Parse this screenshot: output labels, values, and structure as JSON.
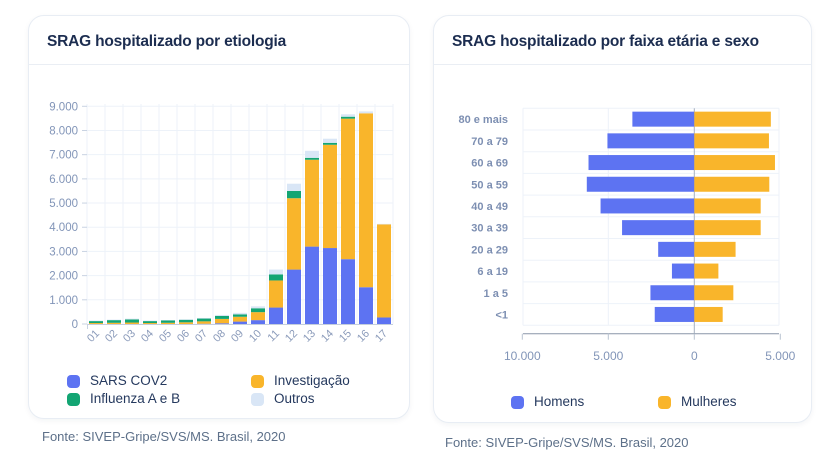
{
  "cards": [
    {
      "title": "SRAG hospitalizado por etiologia",
      "source": "Fonte: SIVEP-Gripe/SVS/MS. Brasil, 2020"
    },
    {
      "title": "SRAG hospitalizado por faixa etária e sexo",
      "source": "Fonte: SIVEP-Gripe/SVS/MS. Brasil, 2020"
    }
  ],
  "chart_data": [
    {
      "type": "bar",
      "stacked": true,
      "title": "SRAG hospitalizado por etiologia",
      "categories": [
        "01",
        "02",
        "03",
        "04",
        "05",
        "06",
        "07",
        "08",
        "09",
        "10",
        "11",
        "12",
        "13",
        "14",
        "15",
        "16",
        "17"
      ],
      "series": [
        {
          "name": "SARS COV2",
          "color": "#5D73F2",
          "values": [
            0,
            0,
            0,
            0,
            0,
            0,
            10,
            30,
            100,
            160,
            680,
            2250,
            3200,
            3140,
            2680,
            1520,
            270
          ]
        },
        {
          "name": "Investigação",
          "color": "#F9B52B",
          "values": [
            40,
            50,
            60,
            40,
            50,
            70,
            100,
            180,
            200,
            330,
            1120,
            2950,
            3590,
            4270,
            5810,
            7190,
            3850
          ]
        },
        {
          "name": "Influenza A e B",
          "color": "#13A573",
          "values": [
            80,
            110,
            130,
            80,
            95,
            105,
            115,
            125,
            100,
            160,
            250,
            300,
            80,
            80,
            80,
            0,
            0
          ]
        },
        {
          "name": "Outros",
          "color": "#D9E6F6",
          "values": [
            20,
            20,
            30,
            20,
            20,
            20,
            25,
            40,
            60,
            80,
            200,
            300,
            290,
            170,
            100,
            80,
            20
          ]
        }
      ],
      "ylim": [
        0,
        9000
      ],
      "ytick_step": 1000,
      "ytick_labels": [
        "0",
        "1.000",
        "2.000",
        "3.000",
        "4.000",
        "5.000",
        "6.000",
        "7.000",
        "8.000",
        "9.000"
      ],
      "grid": true,
      "legend_position": "bottom"
    },
    {
      "type": "bar",
      "orientation": "pyramid",
      "title": "SRAG hospitalizado por faixa etária e sexo",
      "categories": [
        "80 e mais",
        "70 a 79",
        "60 a 69",
        "50 a 59",
        "40 a 49",
        "30 a 39",
        "20 a 29",
        "6 a 19",
        "1 a 5",
        "<1"
      ],
      "series": [
        {
          "name": "Homens",
          "color": "#5D73F2",
          "side": "left",
          "values": [
            3600,
            5050,
            6150,
            6250,
            5450,
            4200,
            2100,
            1300,
            2550,
            2300
          ]
        },
        {
          "name": "Mulheres",
          "color": "#F9B52B",
          "side": "right",
          "values": [
            4450,
            4340,
            4690,
            4360,
            3860,
            3860,
            2400,
            1400,
            2270,
            1650
          ]
        }
      ],
      "xlim": [
        -10000,
        5000
      ],
      "xtick_values": [
        -10000,
        -5000,
        0,
        5000
      ],
      "xtick_labels": [
        "10.000",
        "5.000",
        "0",
        "5.000"
      ],
      "grid": true,
      "legend_position": "bottom"
    }
  ]
}
